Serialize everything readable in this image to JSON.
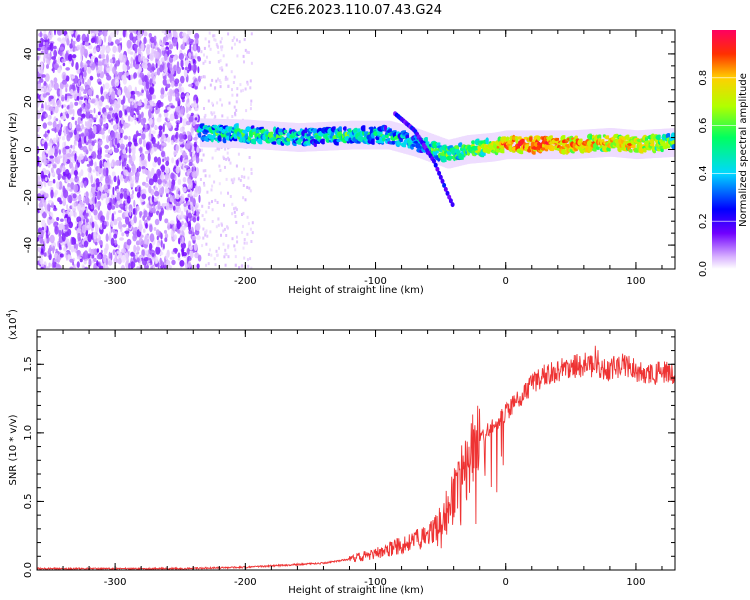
{
  "title": "C2E6.2023.110.07.43.G24",
  "chart_data": [
    {
      "type": "heatmap",
      "xlabel": "Height of straight line (km)",
      "ylabel": "Frequency (Hz)",
      "xlim": [
        -360,
        130
      ],
      "ylim": [
        -50,
        50
      ],
      "x_ticks": [
        -300,
        -200,
        -100,
        0,
        100
      ],
      "y_ticks": [
        -40,
        -20,
        0,
        20,
        40
      ],
      "colorbar": {
        "label": "Normalized spectral amplitude",
        "range": [
          0.0,
          1.0
        ],
        "ticks": [
          "0.0",
          "0.2",
          "0.4",
          "0.6",
          "0.8"
        ]
      },
      "colormap": [
        "#ffffff",
        "#d9b3ff",
        "#7000ff",
        "#0000ff",
        "#00d8ff",
        "#00ff60",
        "#b0ff00",
        "#ffd000",
        "#ff3000",
        "#ff0060"
      ],
      "ridge": {
        "description_values": "dominant frequency (Hz) vs height (km) with normalized amplitude",
        "x": [
          -235,
          -200,
          -160,
          -120,
          -90,
          -70,
          -55,
          -45,
          -30,
          -10,
          0,
          20,
          50,
          80,
          100,
          130
        ],
        "y": [
          7,
          6.5,
          5,
          6,
          6,
          3,
          0,
          -2,
          0,
          1,
          2,
          2,
          2,
          3,
          2,
          3
        ],
        "amplitude": [
          0.5,
          0.55,
          0.5,
          0.55,
          0.5,
          0.45,
          0.55,
          0.6,
          0.6,
          0.7,
          0.85,
          0.9,
          0.85,
          0.75,
          0.8,
          0.6
        ]
      },
      "secondary_branch": {
        "x": [
          -85,
          -70,
          -55,
          -45,
          -40
        ],
        "y": [
          15,
          8,
          -5,
          -18,
          -24
        ]
      },
      "noise_region_xlim": [
        -360,
        -235
      ]
    },
    {
      "type": "line",
      "xlabel": "Height of straight line (km)",
      "ylabel": "SNR (10 * v/v)",
      "multiplier": "(x10",
      "multiplier_exp": "4",
      "xlim": [
        -360,
        130
      ],
      "ylim": [
        0,
        1.75
      ],
      "x_ticks": [
        -300,
        -200,
        -100,
        0,
        100
      ],
      "y_ticks": [
        0.0,
        0.5,
        1.0,
        1.5
      ],
      "y_tick_labels": [
        "0.0",
        "0.5",
        "1.0",
        "1.5"
      ],
      "line_color": "#ee3333",
      "series": [
        {
          "x": [
            -360,
            -300,
            -250,
            -200,
            -180,
            -160,
            -140,
            -120,
            -100,
            -80,
            -60,
            -50,
            -40,
            -30,
            -20,
            -10,
            0,
            10,
            20,
            30,
            40,
            50,
            60,
            70,
            80,
            90,
            100,
            110,
            120,
            130
          ],
          "values": [
            0.01,
            0.01,
            0.01,
            0.02,
            0.03,
            0.04,
            0.05,
            0.08,
            0.12,
            0.18,
            0.25,
            0.35,
            0.55,
            0.75,
            0.95,
            1.05,
            1.15,
            1.25,
            1.35,
            1.42,
            1.45,
            1.48,
            1.5,
            1.48,
            1.46,
            1.5,
            1.45,
            1.42,
            1.44,
            1.42
          ]
        }
      ]
    }
  ]
}
